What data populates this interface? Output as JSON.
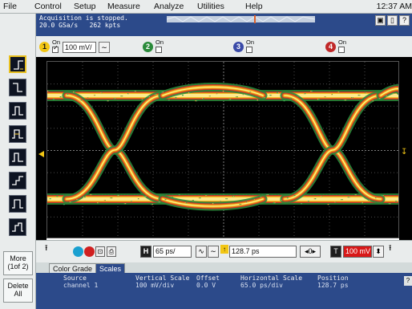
{
  "menu": {
    "items": [
      "File",
      "Control",
      "Setup",
      "Measure",
      "Analyze",
      "Utilities",
      "Help"
    ],
    "clock": "12:37 AM"
  },
  "status": {
    "line1": "Acquisition is stopped.",
    "line2": "20.0 GSa/s   262 kpts"
  },
  "channels": [
    {
      "num": "1",
      "on_label": "On",
      "checked": true,
      "value": "100 mV/",
      "color": "#f2c614"
    },
    {
      "num": "2",
      "on_label": "On",
      "checked": false,
      "color": "#2a8a3a"
    },
    {
      "num": "3",
      "on_label": "On",
      "checked": false,
      "color": "#3a4aa8"
    },
    {
      "num": "4",
      "on_label": "On",
      "checked": false,
      "color": "#c02828"
    }
  ],
  "left_buttons": {
    "more": [
      "More",
      "(1of 2)"
    ],
    "delete": [
      "Delete",
      "All"
    ]
  },
  "horizontal": {
    "h_label": "H",
    "scale": "65 ps/",
    "position": "128.7 ps",
    "trigger_level": "100 mV"
  },
  "tabs": [
    "Color Grade",
    "Scales"
  ],
  "scales_table": {
    "headers": [
      "Source",
      "Vertical Scale",
      "Offset",
      "Horizontal Scale",
      "Position"
    ],
    "row": [
      "channel 1",
      "100 mV/div",
      "0.0 V",
      "65.0 ps/div",
      "128.7 ps"
    ]
  },
  "colors": {
    "channel1": "#f2c614",
    "panel": "#2c4a8a",
    "grid": "#5a5a5a"
  }
}
